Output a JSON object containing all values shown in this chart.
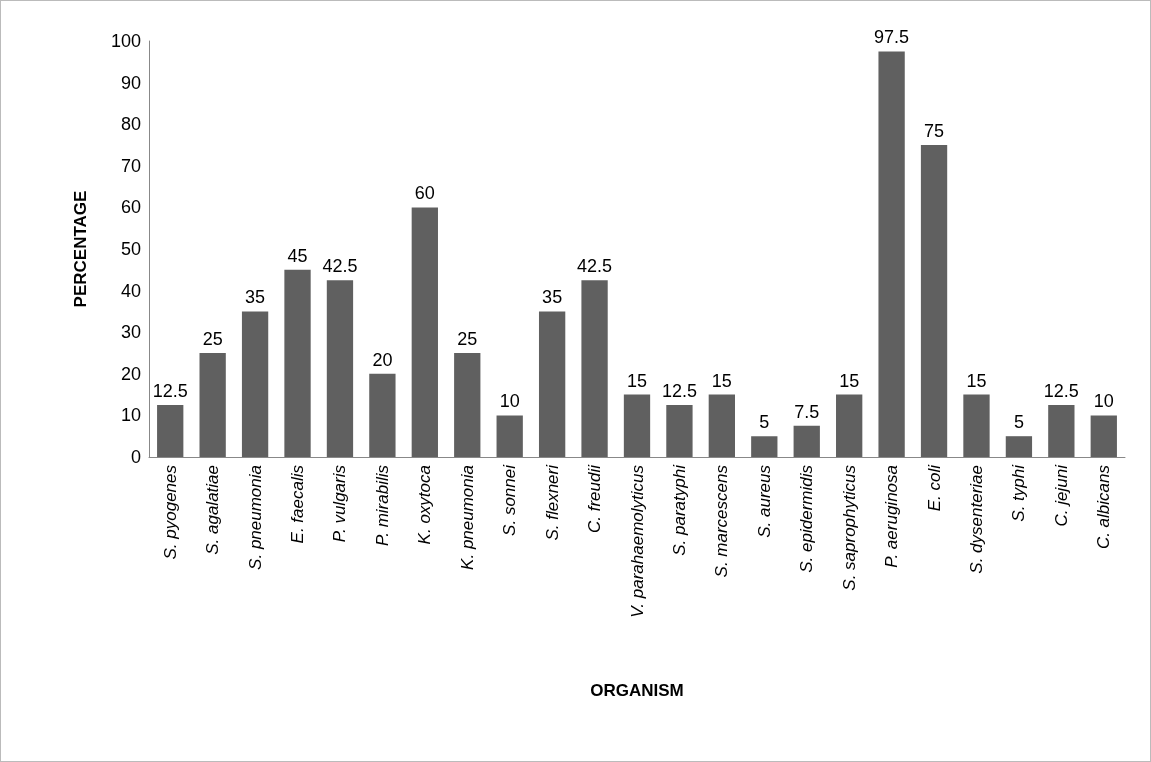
{
  "chart_data": {
    "type": "bar",
    "xlabel": "ORGANISM",
    "ylabel": "PERCENTAGE",
    "categories": [
      "S. pyogenes",
      "S. agalatiae",
      "S. pneumonia",
      "E. faecalis",
      "P. vulgaris",
      "P. mirabilis",
      "K. oxytoca",
      "K. pneumonia",
      "S. sonnei",
      "S. flexneri",
      "C. freudii",
      "V. parahaemolyticus",
      "S. paratyphi",
      "S. marcescens",
      "S. aureus",
      "S. epidermidis",
      "S. saprophyticus",
      "P. aeruginosa",
      "E. coli",
      "S. dysenteriae",
      "S. typhi",
      "C. jejuni",
      "C. albicans"
    ],
    "values": [
      12.5,
      25,
      35,
      45,
      42.5,
      20,
      60,
      25,
      10,
      35,
      42.5,
      15,
      12.5,
      15,
      5,
      7.5,
      15,
      97.5,
      75,
      15,
      5,
      12.5,
      10
    ],
    "color": "#606060",
    "ylim": [
      0,
      100
    ],
    "yticks": [
      0,
      10,
      20,
      30,
      40,
      50,
      60,
      70,
      80,
      90,
      100
    ],
    "grid": false,
    "data_labels": true
  }
}
